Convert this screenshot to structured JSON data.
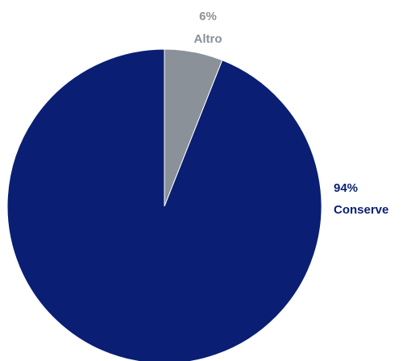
{
  "chart_data": {
    "type": "pie",
    "title": "",
    "slices": [
      {
        "label": "Altro",
        "value": 6,
        "value_label": "6%",
        "color": "#8a9199"
      },
      {
        "label": "Conserve",
        "value": 94,
        "value_label": "94%",
        "color": "#0a1f73"
      }
    ]
  }
}
